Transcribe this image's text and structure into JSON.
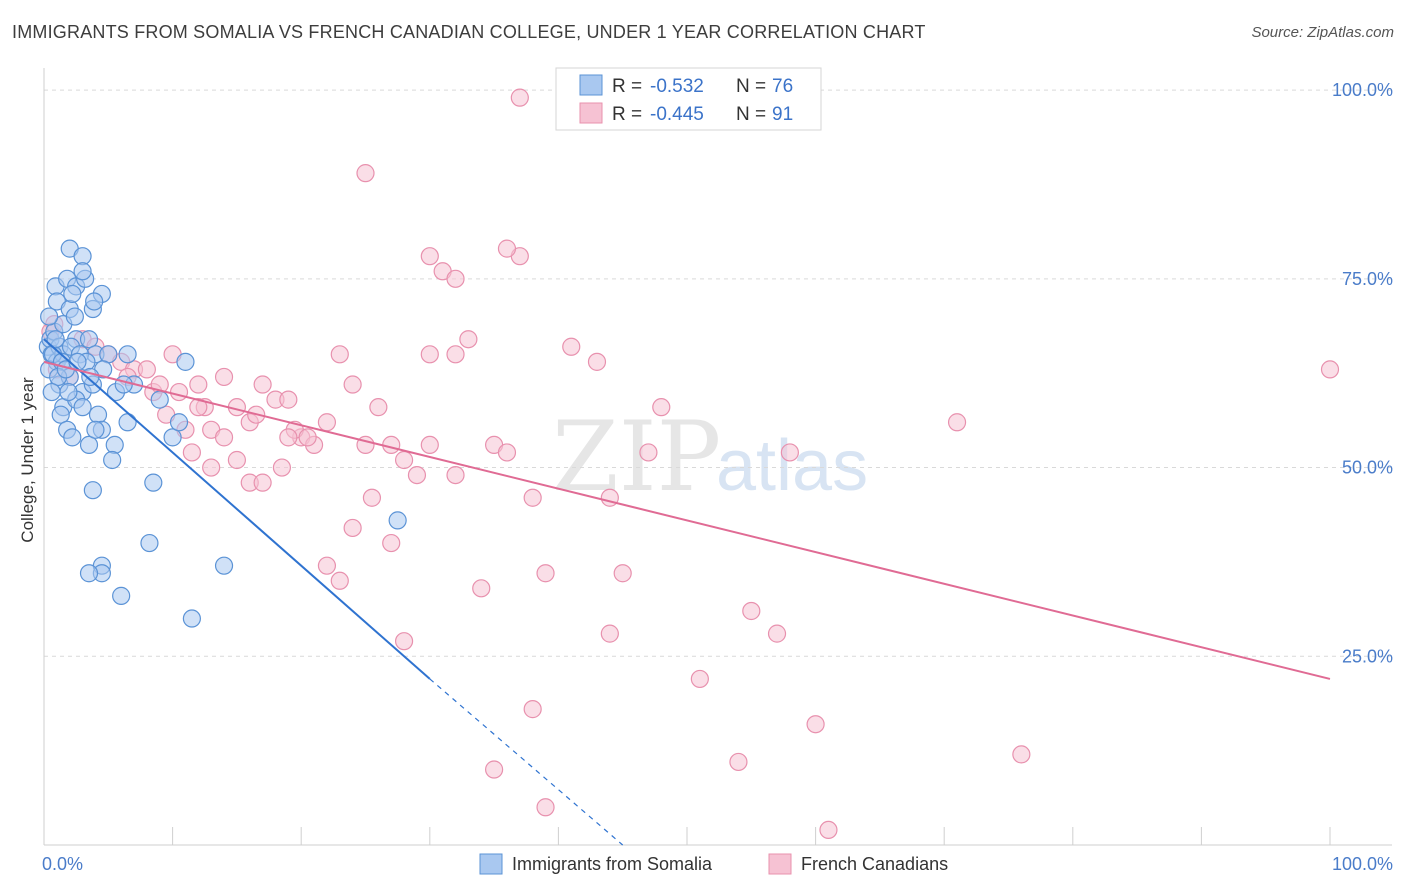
{
  "title": "IMMIGRANTS FROM SOMALIA VS FRENCH CANADIAN COLLEGE, UNDER 1 YEAR CORRELATION CHART",
  "source": "Source: ZipAtlas.com",
  "watermark": {
    "zip": "ZIP",
    "atlas": "atlas"
  },
  "colors": {
    "blue_fill": "#a9c8f0",
    "blue_stroke": "#5b93d6",
    "blue_line": "#2f73d0",
    "pink_fill": "#f6c2d3",
    "pink_stroke": "#e891ae",
    "pink_line": "#e06b94",
    "grid": "#d9d9d9",
    "tick_text": "#4a7cc9"
  },
  "legend": {
    "row1": {
      "r_label": "R =",
      "r_value": "-0.532",
      "n_label": "N =",
      "n_value": "76"
    },
    "row2": {
      "r_label": "R =",
      "r_value": "-0.445",
      "n_label": "N =",
      "n_value": "91"
    }
  },
  "chart_data": {
    "type": "scatter",
    "title": "IMMIGRANTS FROM SOMALIA VS FRENCH CANADIAN COLLEGE, UNDER 1 YEAR CORRELATION CHART",
    "xlabel": "",
    "ylabel": "College, Under 1 year",
    "xlim": [
      0,
      100
    ],
    "ylim": [
      0,
      102
    ],
    "x_ticks": [
      "0.0%",
      "100.0%"
    ],
    "y_ticks": [
      {
        "value": 100,
        "label": "100.0%"
      },
      {
        "value": 75,
        "label": "75.0%"
      },
      {
        "value": 50,
        "label": "50.0%"
      },
      {
        "value": 25,
        "label": "25.0%"
      }
    ],
    "grid": true,
    "legend_position": "bottom",
    "series": [
      {
        "name": "Immigrants from Somalia",
        "color": "#a9c8f0",
        "r": -0.532,
        "n": 76,
        "trend": {
          "x0": 0,
          "y0": 67,
          "x1": 30,
          "y1": 22,
          "dash_to_x": 45,
          "dash_to_y": 0
        },
        "points": [
          [
            0.3,
            66
          ],
          [
            0.5,
            67
          ],
          [
            0.6,
            65
          ],
          [
            0.8,
            68
          ],
          [
            1.0,
            64
          ],
          [
            0.4,
            63
          ],
          [
            1.2,
            66
          ],
          [
            1.5,
            65
          ],
          [
            0.9,
            74
          ],
          [
            1.8,
            75
          ],
          [
            2.0,
            79
          ],
          [
            3.0,
            78
          ],
          [
            2.5,
            74
          ],
          [
            3.2,
            75
          ],
          [
            3.0,
            76
          ],
          [
            4.5,
            73
          ],
          [
            1.0,
            72
          ],
          [
            2.0,
            71
          ],
          [
            2.2,
            73
          ],
          [
            3.8,
            71
          ],
          [
            1.5,
            69
          ],
          [
            2.5,
            67
          ],
          [
            3.5,
            67
          ],
          [
            4.0,
            65
          ],
          [
            1.2,
            61
          ],
          [
            2.0,
            62
          ],
          [
            3.0,
            60
          ],
          [
            3.8,
            61
          ],
          [
            5.0,
            65
          ],
          [
            6.5,
            65
          ],
          [
            7.0,
            61
          ],
          [
            1.5,
            58
          ],
          [
            2.5,
            59
          ],
          [
            3.0,
            58
          ],
          [
            4.2,
            57
          ],
          [
            4.5,
            55
          ],
          [
            1.3,
            57
          ],
          [
            1.8,
            55
          ],
          [
            2.2,
            54
          ],
          [
            3.5,
            53
          ],
          [
            4.0,
            55
          ],
          [
            5.5,
            53
          ],
          [
            6.5,
            56
          ],
          [
            5.3,
            51
          ],
          [
            3.8,
            47
          ],
          [
            8.5,
            48
          ],
          [
            9.0,
            59
          ],
          [
            10.0,
            54
          ],
          [
            10.5,
            56
          ],
          [
            11.0,
            64
          ],
          [
            8.2,
            40
          ],
          [
            4.5,
            37
          ],
          [
            4.5,
            36
          ],
          [
            3.5,
            36
          ],
          [
            6.0,
            33
          ],
          [
            11.5,
            30
          ],
          [
            14.0,
            37
          ],
          [
            27.5,
            43
          ],
          [
            0.7,
            65
          ],
          [
            0.9,
            67
          ],
          [
            1.4,
            64
          ],
          [
            2.1,
            66
          ],
          [
            2.8,
            65
          ],
          [
            3.3,
            64
          ],
          [
            4.6,
            63
          ],
          [
            1.1,
            62
          ],
          [
            1.7,
            63
          ],
          [
            2.6,
            64
          ],
          [
            3.6,
            62
          ],
          [
            0.6,
            60
          ],
          [
            1.9,
            60
          ],
          [
            5.6,
            60
          ],
          [
            0.4,
            70
          ],
          [
            2.4,
            70
          ],
          [
            3.9,
            72
          ],
          [
            6.2,
            61
          ]
        ]
      },
      {
        "name": "French Canadians",
        "color": "#f6c2d3",
        "r": -0.445,
        "n": 91,
        "trend": {
          "x0": 0,
          "y0": 64,
          "x1": 100,
          "y1": 22
        },
        "points": [
          [
            37,
            99
          ],
          [
            25,
            89
          ],
          [
            37,
            78
          ],
          [
            36,
            79
          ],
          [
            30,
            78
          ],
          [
            31,
            76
          ],
          [
            32,
            75
          ],
          [
            33,
            67
          ],
          [
            32,
            65
          ],
          [
            30,
            65
          ],
          [
            41,
            66
          ],
          [
            43,
            64
          ],
          [
            23,
            65
          ],
          [
            100,
            63
          ],
          [
            5,
            65
          ],
          [
            6,
            64
          ],
          [
            7,
            63
          ],
          [
            8,
            63
          ],
          [
            8.5,
            60
          ],
          [
            9,
            61
          ],
          [
            10,
            65
          ],
          [
            10.5,
            60
          ],
          [
            11,
            55
          ],
          [
            12,
            61
          ],
          [
            12.5,
            58
          ],
          [
            14,
            62
          ],
          [
            15,
            58
          ],
          [
            16,
            56
          ],
          [
            17,
            61
          ],
          [
            18,
            59
          ],
          [
            19,
            59
          ],
          [
            20,
            54
          ],
          [
            21,
            53
          ],
          [
            22,
            56
          ],
          [
            24,
            61
          ],
          [
            25,
            53
          ],
          [
            26,
            58
          ],
          [
            27,
            53
          ],
          [
            28,
            51
          ],
          [
            29,
            49
          ],
          [
            30,
            53
          ],
          [
            32,
            49
          ],
          [
            35,
            53
          ],
          [
            36,
            52
          ],
          [
            38,
            46
          ],
          [
            44,
            46
          ],
          [
            48,
            58
          ],
          [
            47,
            52
          ],
          [
            58,
            52
          ],
          [
            71,
            56
          ],
          [
            13,
            55
          ],
          [
            14,
            54
          ],
          [
            15,
            51
          ],
          [
            16,
            48
          ],
          [
            17,
            48
          ],
          [
            18.5,
            50
          ],
          [
            19.5,
            55
          ],
          [
            20.5,
            54
          ],
          [
            22,
            37
          ],
          [
            23,
            35
          ],
          [
            24,
            42
          ],
          [
            25.5,
            46
          ],
          [
            27,
            40
          ],
          [
            28,
            27
          ],
          [
            34,
            34
          ],
          [
            39,
            36
          ],
          [
            45,
            36
          ],
          [
            44,
            28
          ],
          [
            55,
            31
          ],
          [
            57,
            28
          ],
          [
            51,
            22
          ],
          [
            38,
            18
          ],
          [
            54,
            11
          ],
          [
            60,
            16
          ],
          [
            76,
            12
          ],
          [
            35,
            10
          ],
          [
            39,
            5
          ],
          [
            61,
            2
          ],
          [
            3,
            67
          ],
          [
            4,
            66
          ],
          [
            1,
            63
          ],
          [
            2,
            62
          ],
          [
            0.5,
            68
          ],
          [
            9.5,
            57
          ],
          [
            12,
            58
          ],
          [
            11.5,
            52
          ],
          [
            13,
            50
          ],
          [
            16.5,
            57
          ],
          [
            19,
            54
          ],
          [
            6.5,
            62
          ],
          [
            0.8,
            69
          ]
        ]
      }
    ]
  },
  "bottom_legend": {
    "item1": "Immigrants from Somalia",
    "item2": "French Canadians"
  }
}
